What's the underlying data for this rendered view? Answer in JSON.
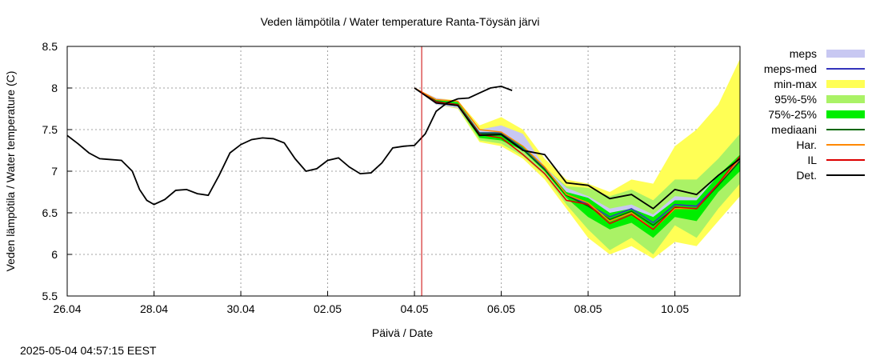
{
  "timestamp": "2025-05-04 04:57:15 EEST",
  "chart_data": {
    "type": "line",
    "title": "Veden lämpötila / Water temperature Ranta-Töysän järvi",
    "xlabel": "Päivä / Date",
    "ylabel": "Veden lämpötila / Water temperature (C)",
    "xlim": [
      "2025-04-26",
      "2025-05-11 12:00"
    ],
    "ylim": [
      5.5,
      8.5
    ],
    "x_ticks": [
      "26.04",
      "28.04",
      "30.04",
      "02.05",
      "04.05",
      "06.05",
      "08.05",
      "10.05"
    ],
    "y_ticks": [
      "5.5",
      "6",
      "6.5",
      "7",
      "7.5",
      "8",
      "8.5"
    ],
    "grid": true,
    "legend_position": "right",
    "forecast_start": "2025-05-04 04:00",
    "legend": [
      "meps",
      "meps-med",
      "min-max",
      "95%-5%",
      "75%-25%",
      "mediaani",
      "Har.",
      "IL",
      "Det."
    ],
    "colors": {
      "meps": "#c8c8f2",
      "meps_med": "#3333bb",
      "min_max": "#ffff55",
      "p95_5": "#aaf266",
      "p75_25": "#00ee00",
      "mediaani": "#006600",
      "har": "#ff8800",
      "il": "#dd0000",
      "det": "#000000",
      "vline": "#cc0000"
    },
    "observed": {
      "name": "Det.",
      "points": [
        [
          "2025-04-26 00:00",
          7.43
        ],
        [
          "2025-04-26 06:00",
          7.33
        ],
        [
          "2025-04-26 12:00",
          7.22
        ],
        [
          "2025-04-26 18:00",
          7.15
        ],
        [
          "2025-04-27 00:00",
          7.14
        ],
        [
          "2025-04-27 06:00",
          7.13
        ],
        [
          "2025-04-27 12:00",
          7.0
        ],
        [
          "2025-04-27 16:00",
          6.78
        ],
        [
          "2025-04-27 20:00",
          6.65
        ],
        [
          "2025-04-28 00:00",
          6.6
        ],
        [
          "2025-04-28 06:00",
          6.66
        ],
        [
          "2025-04-28 12:00",
          6.77
        ],
        [
          "2025-04-28 18:00",
          6.78
        ],
        [
          "2025-04-29 00:00",
          6.73
        ],
        [
          "2025-04-29 06:00",
          6.71
        ],
        [
          "2025-04-29 12:00",
          6.95
        ],
        [
          "2025-04-29 18:00",
          7.22
        ],
        [
          "2025-04-30 00:00",
          7.32
        ],
        [
          "2025-04-30 06:00",
          7.38
        ],
        [
          "2025-04-30 12:00",
          7.4
        ],
        [
          "2025-04-30 18:00",
          7.39
        ],
        [
          "2025-05-01 00:00",
          7.34
        ],
        [
          "2025-05-01 06:00",
          7.15
        ],
        [
          "2025-05-01 12:00",
          7.0
        ],
        [
          "2025-05-01 18:00",
          7.03
        ],
        [
          "2025-05-02 00:00",
          7.13
        ],
        [
          "2025-05-02 06:00",
          7.16
        ],
        [
          "2025-05-02 12:00",
          7.05
        ],
        [
          "2025-05-02 18:00",
          6.97
        ],
        [
          "2025-05-03 00:00",
          6.98
        ],
        [
          "2025-05-03 06:00",
          7.1
        ],
        [
          "2025-05-03 12:00",
          7.28
        ],
        [
          "2025-05-03 18:00",
          7.3
        ],
        [
          "2025-05-04 00:00",
          7.31
        ],
        [
          "2025-05-04 06:00",
          7.45
        ],
        [
          "2025-05-04 12:00",
          7.72
        ],
        [
          "2025-05-04 18:00",
          7.82
        ],
        [
          "2025-05-05 00:00",
          7.87
        ],
        [
          "2025-05-05 06:00",
          7.88
        ],
        [
          "2025-05-05 12:00",
          7.94
        ],
        [
          "2025-05-05 18:00",
          8.0
        ],
        [
          "2025-05-06 00:00",
          8.02
        ],
        [
          "2025-05-06 06:00",
          7.97
        ]
      ]
    },
    "forecast": {
      "x": [
        "2025-05-04 00:00",
        "2025-05-04 12:00",
        "2025-05-05 00:00",
        "2025-05-05 12:00",
        "2025-05-06 00:00",
        "2025-05-06 12:00",
        "2025-05-07 00:00",
        "2025-05-07 12:00",
        "2025-05-08 00:00",
        "2025-05-08 12:00",
        "2025-05-09 00:00",
        "2025-05-09 12:00",
        "2025-05-10 00:00",
        "2025-05-10 12:00",
        "2025-05-11 00:00",
        "2025-05-11 12:00"
      ],
      "min_max_low": [
        8.0,
        7.8,
        7.75,
        7.35,
        7.3,
        7.15,
        6.9,
        6.55,
        6.2,
        6.0,
        6.1,
        5.95,
        6.15,
        6.1,
        6.4,
        6.7
      ],
      "min_max_high": [
        8.0,
        7.88,
        7.85,
        7.55,
        7.65,
        7.5,
        7.15,
        6.9,
        6.85,
        6.75,
        6.9,
        6.85,
        7.3,
        7.5,
        7.8,
        8.35
      ],
      "p95_5_low": [
        8.0,
        7.8,
        7.76,
        7.37,
        7.33,
        7.18,
        6.95,
        6.6,
        6.3,
        6.05,
        6.2,
        6.0,
        6.35,
        6.2,
        6.55,
        6.85
      ],
      "p95_5_high": [
        8.0,
        7.87,
        7.84,
        7.5,
        7.55,
        7.35,
        7.05,
        6.82,
        6.8,
        6.7,
        6.78,
        6.65,
        6.9,
        6.9,
        7.15,
        7.45
      ],
      "p75_25_low": [
        8.0,
        7.82,
        7.78,
        7.4,
        7.37,
        7.25,
        7.0,
        6.68,
        6.45,
        6.3,
        6.38,
        6.2,
        6.45,
        6.4,
        6.75,
        7.0
      ],
      "p75_25_high": [
        8.0,
        7.86,
        7.83,
        7.47,
        7.47,
        7.3,
        7.05,
        6.75,
        6.68,
        6.5,
        6.55,
        6.45,
        6.65,
        6.65,
        6.95,
        7.2
      ],
      "meps_low": [
        8.0,
        7.8,
        7.76,
        7.43,
        7.43,
        7.25,
        7.02,
        6.7,
        6.55,
        6.4,
        6.45,
        6.32,
        6.55,
        6.52,
        6.8,
        7.05
      ],
      "meps_high": [
        8.0,
        7.88,
        7.84,
        7.5,
        7.55,
        7.45,
        7.05,
        6.8,
        6.7,
        6.55,
        6.6,
        6.48,
        6.7,
        6.68,
        6.95,
        7.18
      ],
      "series": [
        {
          "name": "meps-med",
          "values": [
            8.0,
            7.84,
            7.8,
            7.46,
            7.46,
            7.27,
            7.03,
            6.72,
            6.6,
            6.45,
            6.55,
            6.38,
            6.6,
            6.58,
            6.85,
            7.13
          ]
        },
        {
          "name": "mediaani",
          "values": [
            8.0,
            7.84,
            7.8,
            7.45,
            7.45,
            7.26,
            7.02,
            6.71,
            6.58,
            6.42,
            6.52,
            6.35,
            6.56,
            6.55,
            6.83,
            7.12
          ]
        },
        {
          "name": "Har.",
          "values": [
            8.0,
            7.86,
            7.84,
            7.5,
            7.47,
            7.3,
            7.05,
            6.72,
            6.62,
            6.4,
            6.5,
            6.3,
            6.55,
            6.55,
            6.85,
            7.15
          ]
        },
        {
          "name": "IL",
          "values": [
            8.0,
            7.83,
            7.8,
            7.44,
            7.4,
            7.2,
            6.97,
            6.65,
            6.6,
            6.37,
            6.48,
            6.3,
            6.57,
            6.55,
            6.85,
            7.18
          ]
        },
        {
          "name": "Det.",
          "values": [
            8.0,
            7.82,
            7.79,
            7.43,
            7.44,
            7.25,
            7.2,
            6.86,
            6.83,
            6.67,
            6.72,
            6.55,
            6.78,
            6.72,
            6.95,
            7.15
          ]
        }
      ]
    }
  }
}
